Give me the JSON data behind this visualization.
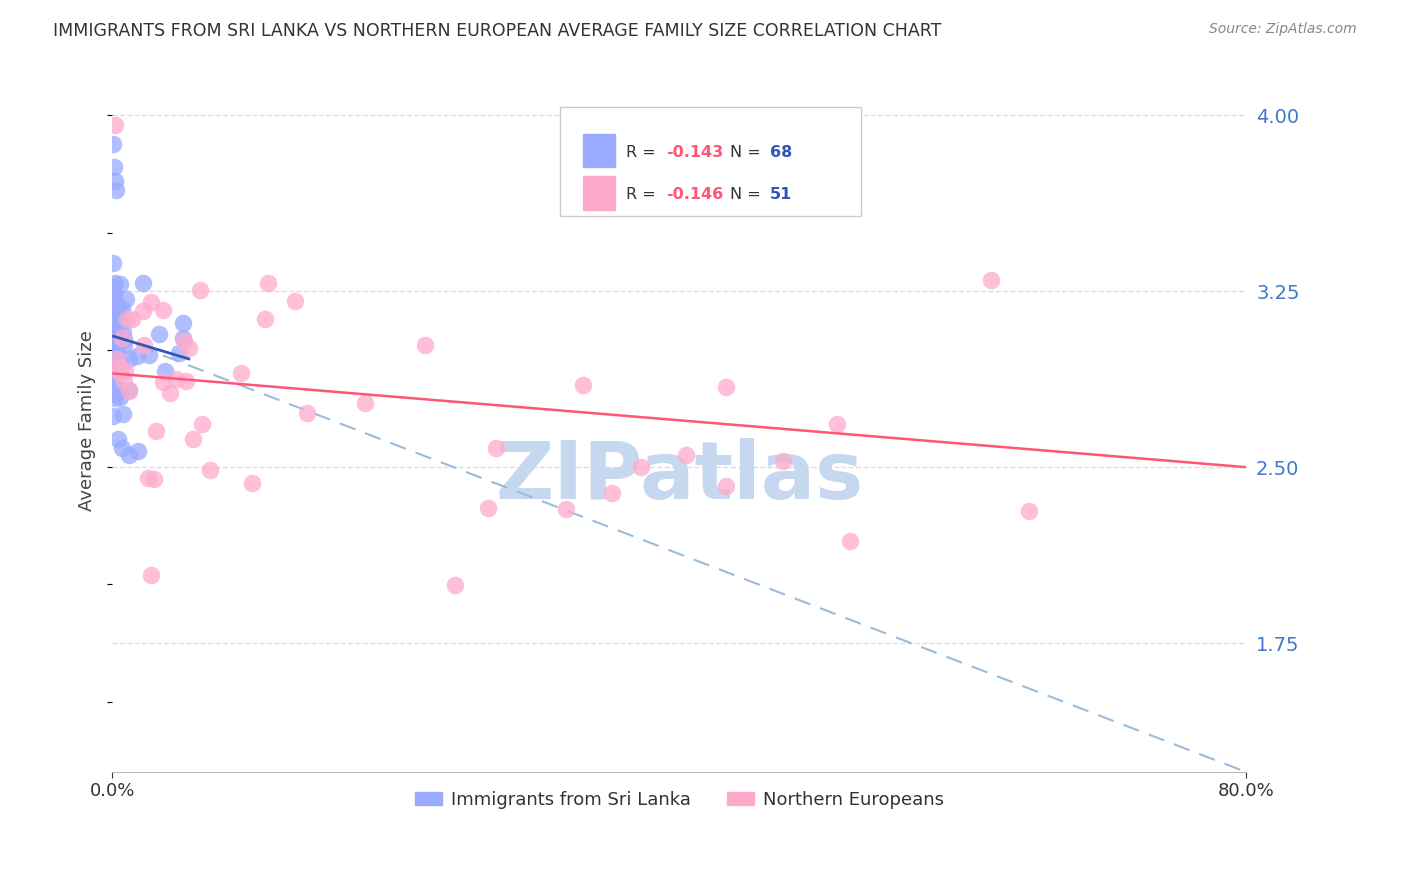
{
  "title": "IMMIGRANTS FROM SRI LANKA VS NORTHERN EUROPEAN AVERAGE FAMILY SIZE CORRELATION CHART",
  "source": "Source: ZipAtlas.com",
  "ylabel": "Average Family Size",
  "yticks": [
    1.75,
    2.5,
    3.25,
    4.0
  ],
  "xmin": 0.0,
  "xmax": 0.8,
  "ymin": 1.2,
  "ymax": 4.2,
  "sri_lanka_color": "#99aaff",
  "northern_color": "#ffaacc",
  "sri_lanka_line_color": "#3355bb",
  "northern_line_color": "#ff5577",
  "dashed_line_color": "#99bbdd",
  "background_color": "#ffffff",
  "grid_color": "#dddddd",
  "watermark_text": "ZIPatlas",
  "watermark_color": "#c5d8f0",
  "legend_r_color": "#ff5577",
  "legend_n_color": "#3355bb",
  "ytick_color": "#4477cc",
  "title_color": "#333333",
  "source_color": "#888888",
  "sri_lanka_line_x": [
    0.0,
    0.055
  ],
  "sri_lanka_line_y": [
    3.06,
    2.96
  ],
  "northern_line_x": [
    0.0,
    0.8
  ],
  "northern_line_y": [
    2.9,
    2.5
  ],
  "dashed_line_x": [
    0.0,
    0.8
  ],
  "dashed_line_y": [
    3.06,
    1.2
  ]
}
